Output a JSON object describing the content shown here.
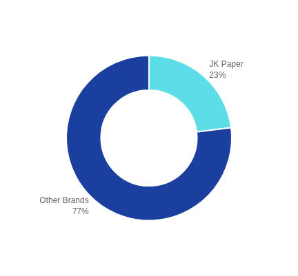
{
  "chart_data": {
    "type": "doughnut",
    "categories": [
      "JK Paper",
      "Other Brands"
    ],
    "values": [
      23,
      77
    ],
    "value_labels": [
      "23%",
      "77%"
    ],
    "colors": [
      "#5DDDE8",
      "#1B3F9E"
    ],
    "legend": false
  }
}
